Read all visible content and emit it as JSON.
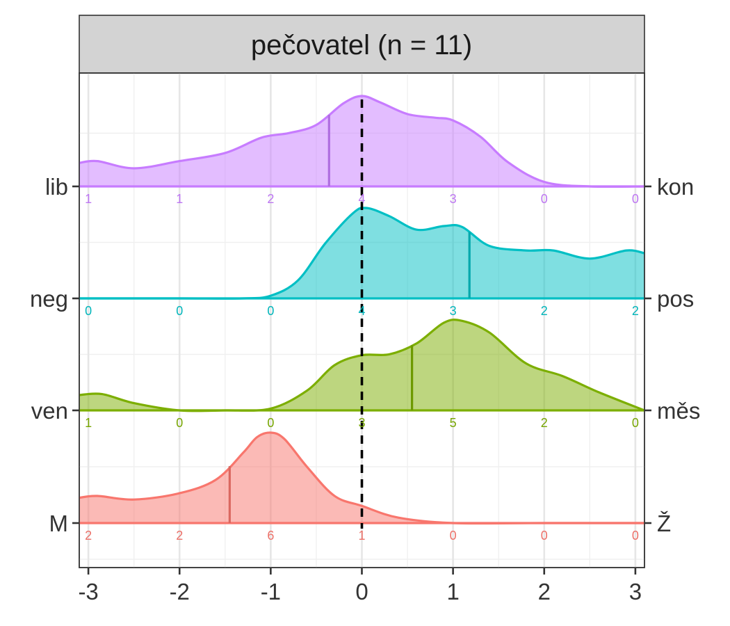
{
  "chart_data": {
    "type": "ridgeline-density",
    "panel_title": "pečovatel (n = 11)",
    "x_ticks": [
      -3,
      -2,
      -1,
      0,
      1,
      2,
      3
    ],
    "xlim": [
      -3.1,
      3.1
    ],
    "reference_line_x": 0,
    "grid": true,
    "bins_x": [
      -3,
      -2,
      -1,
      0,
      1,
      2,
      3
    ],
    "series": [
      {
        "left_label": "M",
        "right_label": "Ž",
        "color": "#F8766D",
        "mean": -1.45,
        "counts": [
          "2",
          "2",
          "6",
          "1",
          "0",
          "0",
          "0"
        ],
        "density_x": [
          -3.1,
          -2.9,
          -2.5,
          -2.0,
          -1.6,
          -1.3,
          -1.15,
          -1.0,
          -0.85,
          -0.6,
          -0.3,
          0.0,
          0.4,
          1.0,
          2.0,
          3.1
        ],
        "density_y": [
          0.28,
          0.3,
          0.26,
          0.33,
          0.48,
          0.78,
          0.95,
          1.0,
          0.93,
          0.62,
          0.3,
          0.19,
          0.06,
          0.0,
          0.0,
          0.0
        ]
      },
      {
        "left_label": "ven",
        "right_label": "měs",
        "color": "#7CAE00",
        "mean": 0.55,
        "counts": [
          "1",
          "0",
          "0",
          "3",
          "5",
          "2",
          "0"
        ],
        "density_x": [
          -3.1,
          -2.85,
          -2.5,
          -2.0,
          -1.5,
          -1.0,
          -0.6,
          -0.3,
          0.0,
          0.3,
          0.6,
          0.9,
          1.1,
          1.4,
          1.8,
          2.2,
          2.6,
          3.1
        ],
        "density_y": [
          0.17,
          0.18,
          0.08,
          0.0,
          0.0,
          0.02,
          0.22,
          0.5,
          0.61,
          0.62,
          0.74,
          0.97,
          0.99,
          0.86,
          0.52,
          0.38,
          0.2,
          0.0
        ]
      },
      {
        "left_label": "neg",
        "right_label": "pos",
        "color": "#00BFC4",
        "mean": 1.18,
        "counts": [
          "0",
          "0",
          "0",
          "4",
          "3",
          "2",
          "2"
        ],
        "density_x": [
          -3.1,
          -2.0,
          -1.3,
          -1.0,
          -0.7,
          -0.4,
          -0.1,
          0.05,
          0.3,
          0.6,
          0.9,
          1.1,
          1.4,
          1.8,
          2.1,
          2.5,
          2.9,
          3.1
        ],
        "density_y": [
          0.0,
          0.0,
          0.0,
          0.03,
          0.2,
          0.61,
          0.94,
          1.0,
          0.91,
          0.76,
          0.8,
          0.79,
          0.58,
          0.53,
          0.53,
          0.44,
          0.53,
          0.5
        ]
      },
      {
        "left_label": "lib",
        "right_label": "kon",
        "color": "#C77CFF",
        "mean": -0.36,
        "counts": [
          "1",
          "1",
          "2",
          "4",
          "3",
          "0",
          "0"
        ],
        "density_x": [
          -3.1,
          -2.9,
          -2.5,
          -2.0,
          -1.5,
          -1.1,
          -0.8,
          -0.5,
          -0.2,
          0.0,
          0.2,
          0.5,
          0.8,
          1.0,
          1.3,
          1.6,
          2.0,
          2.5,
          3.1
        ],
        "density_y": [
          0.26,
          0.28,
          0.2,
          0.28,
          0.37,
          0.54,
          0.59,
          0.68,
          0.92,
          1.0,
          0.93,
          0.8,
          0.76,
          0.73,
          0.55,
          0.27,
          0.05,
          0.0,
          0.0
        ]
      }
    ]
  }
}
